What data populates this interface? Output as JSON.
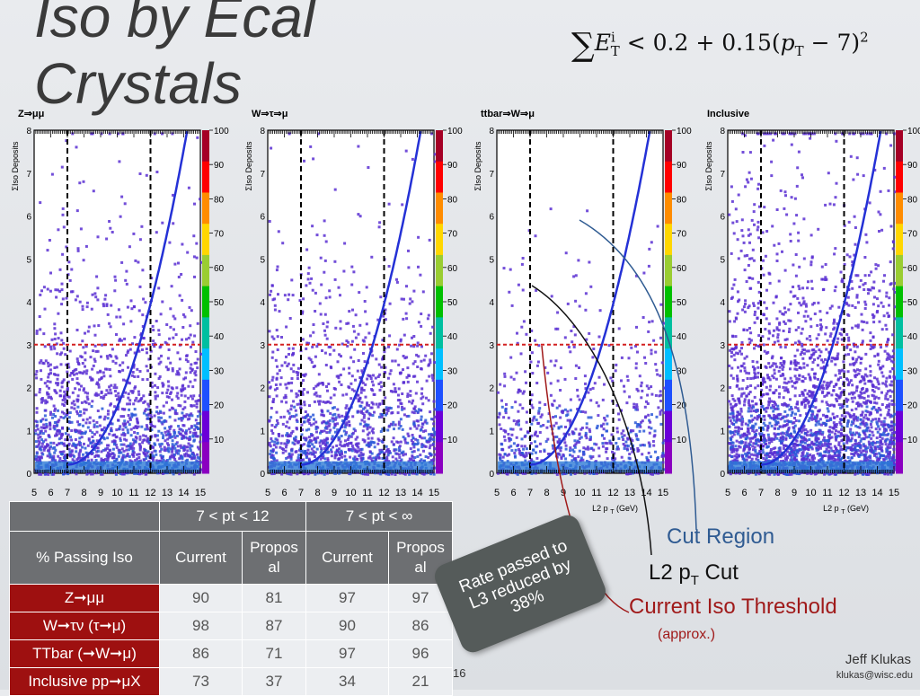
{
  "slide": {
    "title_line1": "Iso by Ecal",
    "title_line2": "Crystals",
    "formula_sum": "∑",
    "formula_E": "E",
    "formula_E_sub": "T",
    "formula_E_sup": "i",
    "formula_rest": " < 0.2 + 0.15(",
    "formula_p": "p",
    "formula_p_sub": "T",
    "formula_tail": " − 7)",
    "formula_tail_sup": "2",
    "page_number": "16",
    "author": "Jeff Klukas",
    "email": "klukas@wisc.edu"
  },
  "plots": {
    "panels": [
      {
        "title": "Z⇒μμ",
        "density": 0.55
      },
      {
        "title": "W⇒τ⇒μ",
        "density": 0.45
      },
      {
        "title": "ttbar⇒W⇒μ",
        "density": 0.2
      },
      {
        "title": "Inclusive",
        "density": 0.9
      }
    ],
    "ylabel": "ΣIso Deposits",
    "xlabel": "L2 p",
    "xlabel_sub": "T",
    "xlabel_unit": "(GeV)",
    "xticks": [
      "5",
      "6",
      "7",
      "8",
      "9",
      "10",
      "11",
      "12",
      "13",
      "14",
      "15"
    ],
    "yticks": [
      "0",
      "1",
      "2",
      "3",
      "4",
      "5",
      "6",
      "7",
      "8"
    ],
    "zticks": [
      "10",
      "20",
      "30",
      "40",
      "50",
      "60",
      "70",
      "80",
      "90",
      "100"
    ],
    "x_range": [
      5,
      15
    ],
    "y_range": [
      0,
      8
    ],
    "pt_cut_lines": [
      7,
      12
    ],
    "iso_threshold": 3,
    "colors": {
      "cut_curve": "#2431d6",
      "threshold_line": "#d32020",
      "point_color": "#5b2fd2",
      "point_color_dense": "#2a58d8"
    }
  },
  "table": {
    "header1": [
      "",
      "7 < pt < 12",
      "7 < pt < ∞"
    ],
    "header2": [
      "% Passing Iso",
      "Current",
      "Propos al",
      "Current",
      "Propos al"
    ],
    "rows": [
      {
        "label": "Z➞μμ",
        "values": [
          "90",
          "81",
          "97",
          "97"
        ]
      },
      {
        "label": "W➞τν (τ➞μ)",
        "values": [
          "98",
          "87",
          "90",
          "86"
        ]
      },
      {
        "label": "TTbar (➞W➞μ)",
        "values": [
          "86",
          "71",
          "97",
          "96"
        ]
      },
      {
        "label": "Inclusive pp➞μX",
        "values": [
          "73",
          "37",
          "34",
          "21"
        ]
      }
    ]
  },
  "callouts": {
    "rate": "Rate passed to L3 reduced by 38%",
    "cut_region": "Cut Region",
    "l2_cut_prefix": "L2 p",
    "l2_cut_sub": "T",
    "l2_cut_suffix": " Cut",
    "iso_threshold": "Current Iso Threshold",
    "approx": "(approx.)",
    "colors": {
      "cut_region": "#2f5b92",
      "iso": "#a01a1a",
      "callout_bg": "#555b5a"
    }
  }
}
